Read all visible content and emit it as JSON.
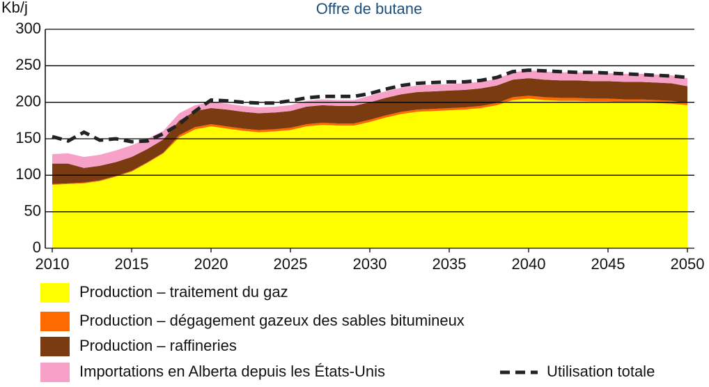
{
  "chart_data": {
    "type": "area",
    "title": "Offre de butane",
    "y_label": "Kb/j",
    "x": [
      2010,
      2011,
      2012,
      2013,
      2014,
      2015,
      2016,
      2017,
      2018,
      2019,
      2020,
      2021,
      2022,
      2023,
      2024,
      2025,
      2026,
      2027,
      2028,
      2029,
      2030,
      2031,
      2032,
      2033,
      2034,
      2035,
      2036,
      2037,
      2038,
      2039,
      2040,
      2041,
      2042,
      2043,
      2044,
      2045,
      2046,
      2047,
      2048,
      2049,
      2050
    ],
    "xlim": [
      2010,
      2050
    ],
    "xticks": [
      2010,
      2015,
      2020,
      2025,
      2030,
      2035,
      2040,
      2045,
      2050
    ],
    "ylim": [
      0,
      300
    ],
    "yticks": [
      0,
      50,
      100,
      150,
      200,
      250,
      300
    ],
    "grid": true,
    "series": [
      {
        "name": "Production – traitement du gaz",
        "color": "#ffff00",
        "values": [
          87,
          88,
          89,
          92,
          98,
          105,
          117,
          130,
          152,
          163,
          167,
          164,
          161,
          159,
          160,
          162,
          167,
          169,
          168,
          168,
          173,
          179,
          184,
          187,
          188,
          189,
          190,
          192,
          196,
          203,
          205,
          203,
          202,
          202,
          201,
          201,
          200,
          200,
          199,
          198,
          196
        ]
      },
      {
        "name": "Production – dégagement gazeux des sables bitumineux",
        "color": "#ff6a00",
        "values": [
          1,
          1,
          1,
          1,
          1,
          1,
          1,
          1,
          3,
          3,
          3,
          3,
          3,
          3,
          3,
          3,
          3,
          3,
          3,
          3,
          3,
          3,
          3,
          3,
          3,
          3,
          3,
          3,
          3,
          4,
          4,
          4,
          4,
          4,
          4,
          4,
          4,
          4,
          4,
          4,
          3
        ]
      },
      {
        "name": "Production – raffineries",
        "color": "#7a3b10",
        "values": [
          28,
          27,
          20,
          20,
          19,
          19,
          18,
          18,
          20,
          22,
          22,
          23,
          23,
          23,
          23,
          23,
          24,
          24,
          24,
          24,
          24,
          24,
          24,
          24,
          24,
          24,
          24,
          24,
          24,
          24,
          24,
          24,
          24,
          24,
          24,
          24,
          24,
          24,
          24,
          24,
          23
        ]
      },
      {
        "name": "Importations en Alberta depuis les États-Unis",
        "color": "#f7a1c9",
        "values": [
          13,
          14,
          15,
          15,
          16,
          16,
          14,
          12,
          10,
          8,
          8,
          8,
          8,
          8,
          8,
          8,
          8,
          8,
          8,
          8,
          9,
          9,
          9,
          9,
          9,
          9,
          9,
          9,
          9,
          10,
          11,
          11,
          11,
          11,
          11,
          11,
          11,
          11,
          11,
          11,
          11
        ]
      },
      {
        "name": "Utilisation totale",
        "color": "#222222",
        "type": "line",
        "values": [
          153,
          147,
          159,
          148,
          150,
          146,
          147,
          157,
          170,
          188,
          203,
          202,
          200,
          199,
          199,
          202,
          206,
          208,
          208,
          208,
          212,
          218,
          223,
          226,
          227,
          228,
          228,
          230,
          234,
          242,
          244,
          243,
          242,
          241,
          241,
          240,
          239,
          238,
          237,
          236,
          234
        ]
      }
    ]
  }
}
